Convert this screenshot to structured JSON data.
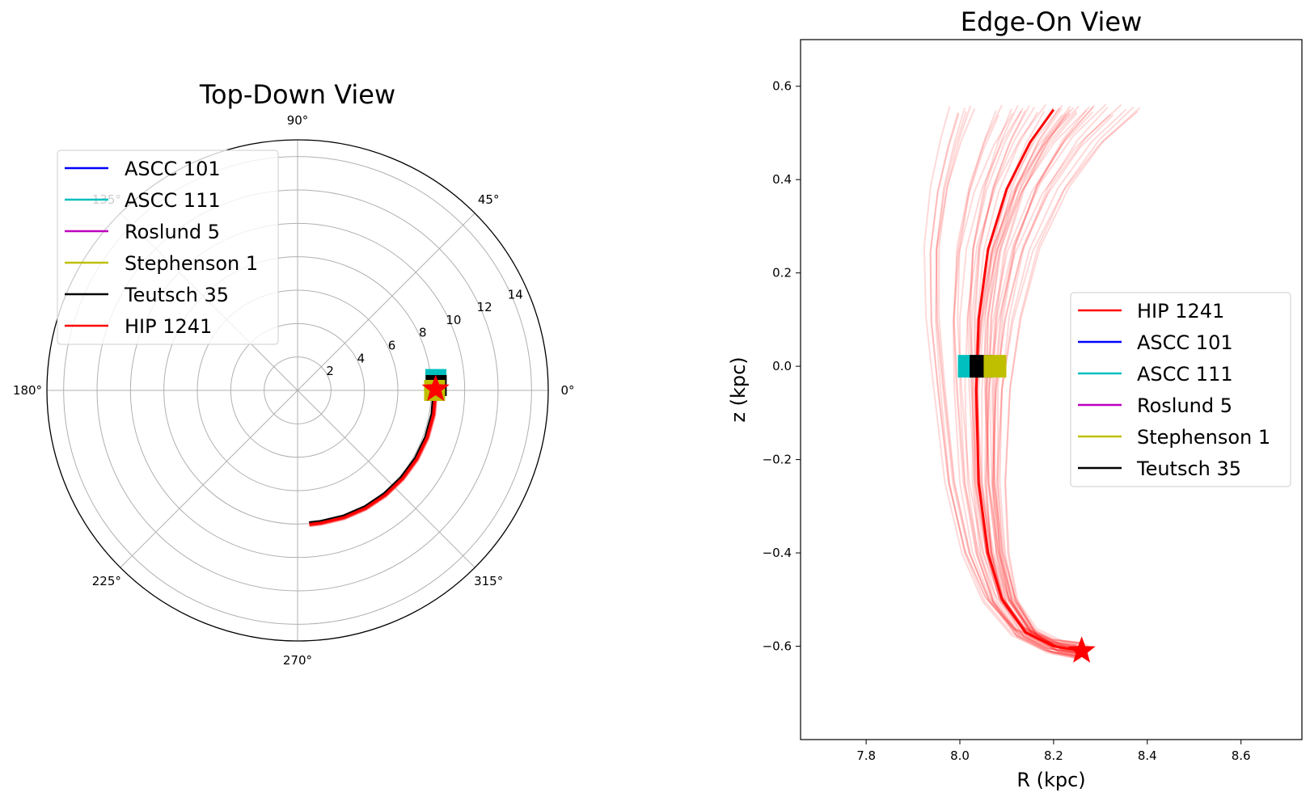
{
  "colors": {
    "ASCC 101": "#0000ff",
    "ASCC 111": "#00bfbf",
    "Roslund 5": "#bf00bf",
    "Stephenson 1": "#bfbf00",
    "Teutsch 35": "#000000",
    "HIP 1241": "#ff0000"
  },
  "chart_data": [
    {
      "type": "polar",
      "title": "Top-Down View",
      "angle_ticks": [
        "0°",
        "45°",
        "90°",
        "135°",
        "180°",
        "225°",
        "270°",
        "315°"
      ],
      "angle_tick_degrees": [
        0,
        45,
        90,
        135,
        180,
        225,
        270,
        315
      ],
      "radial_ticks": [
        "2",
        "4",
        "6",
        "8",
        "10",
        "12",
        "14"
      ],
      "radial_tick_values": [
        2,
        4,
        6,
        8,
        10,
        12,
        14
      ],
      "rlim": [
        0,
        15
      ],
      "legend": [
        "ASCC 101",
        "ASCC 111",
        "Roslund 5",
        "Stephenson 1",
        "Teutsch 35",
        "HIP 1241"
      ],
      "legend_loc": "upper-left",
      "clusters_now": [
        {
          "name": "ASCC 111",
          "r": 8.3,
          "theta": 4.5
        },
        {
          "name": "Teutsch 35",
          "r": 8.3,
          "theta": 2.0
        },
        {
          "name": "Stephenson 1",
          "r": 8.2,
          "theta": 0.0
        }
      ],
      "star_now": {
        "name": "HIP 1241",
        "r": 8.26,
        "theta": 0.5
      },
      "orbit_track": {
        "theta": [
          0.5,
          -10,
          -20,
          -30,
          -40,
          -50,
          -60,
          -70,
          -80,
          -85
        ],
        "r": [
          8.26,
          8.26,
          8.25,
          8.23,
          8.2,
          8.17,
          8.14,
          8.1,
          8.06,
          8.05
        ]
      }
    },
    {
      "type": "line",
      "title": "Edge-On View",
      "xlabel": "R (kpc)",
      "ylabel": "z (kpc)",
      "xlim": [
        7.66,
        8.73
      ],
      "ylim": [
        -0.8,
        0.7
      ],
      "xticks": [
        "7.8",
        "8.0",
        "8.2",
        "8.4",
        "8.6"
      ],
      "xtick_values": [
        7.8,
        8.0,
        8.2,
        8.4,
        8.6
      ],
      "yticks": [
        "0.6",
        "0.4",
        "0.2",
        "0.0",
        "−0.2",
        "−0.4",
        "−0.6"
      ],
      "ytick_values": [
        0.6,
        0.4,
        0.2,
        0.0,
        -0.2,
        -0.4,
        -0.6
      ],
      "legend": [
        "HIP 1241",
        "ASCC 101",
        "ASCC 111",
        "Roslund 5",
        "Stephenson 1",
        "Teutsch 35"
      ],
      "legend_loc": "center-right",
      "clusters_now": [
        {
          "name": "ASCC 111",
          "R": 8.02,
          "z": 0.0
        },
        {
          "name": "Teutsch 35",
          "R": 8.045,
          "z": 0.0
        },
        {
          "name": "Stephenson 1",
          "R": 8.075,
          "z": 0.0
        }
      ],
      "star_now": {
        "name": "HIP 1241",
        "R": 8.26,
        "z": -0.61
      },
      "mean_orbit": {
        "R": [
          8.26,
          8.2,
          8.14,
          8.09,
          8.06,
          8.04,
          8.035,
          8.04,
          8.06,
          8.1,
          8.15,
          8.2
        ],
        "z": [
          -0.61,
          -0.6,
          -0.57,
          -0.5,
          -0.4,
          -0.25,
          -0.05,
          0.1,
          0.25,
          0.38,
          0.48,
          0.55
        ]
      }
    }
  ]
}
